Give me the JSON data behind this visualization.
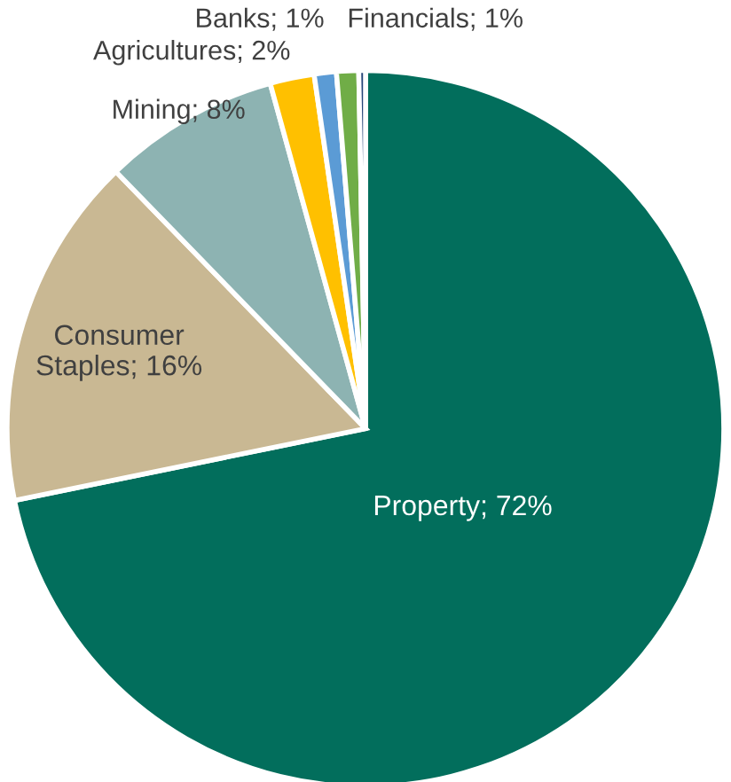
{
  "chart_data": {
    "type": "pie",
    "categories": [
      "Property; 72%",
      "Consumer Staples; 16%",
      "Mining; 8%",
      "Agricultures; 2%",
      "Banks; 1%",
      "Financials; 1%",
      null
    ],
    "values": [
      72,
      16,
      8,
      2,
      1,
      1,
      0.3
    ],
    "colors": [
      "#026e5c",
      "#c9b893",
      "#8db3b2",
      "#ffc000",
      "#5b9bd5",
      "#70ad47",
      "#264478"
    ],
    "legend": false
  }
}
